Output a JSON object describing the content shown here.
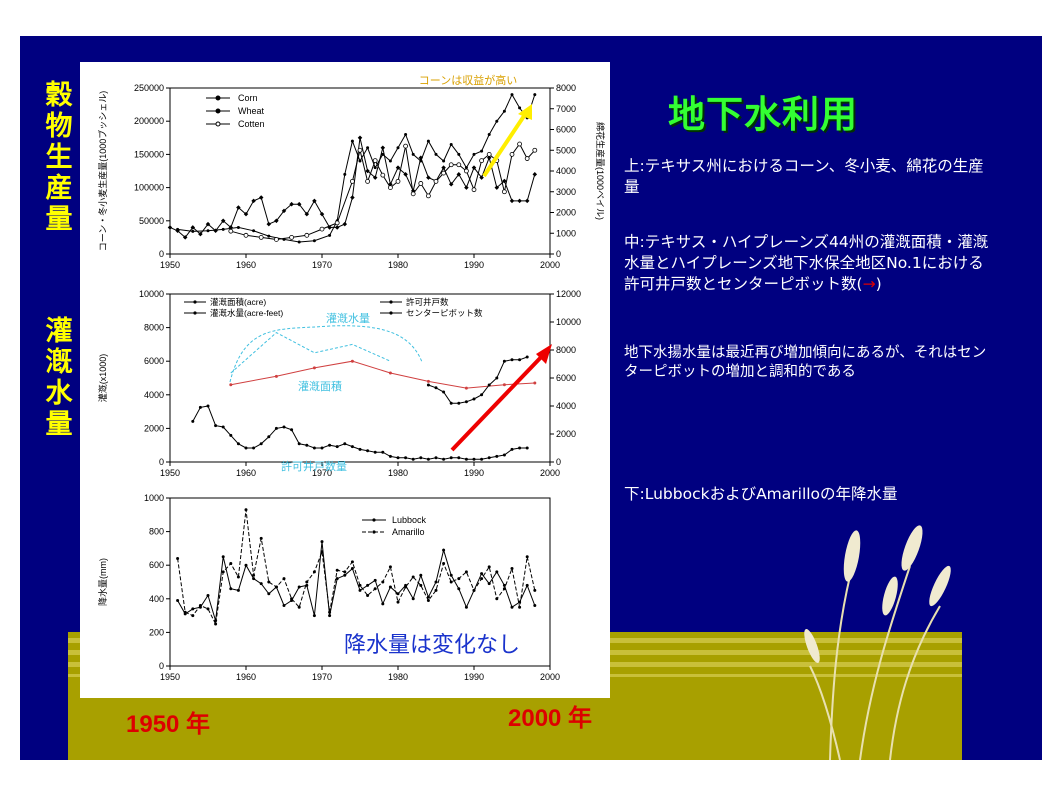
{
  "slide": {
    "title": "地下水利用",
    "left_labels": {
      "top": "穀物生産量",
      "middle": "灌漑水量"
    },
    "desc_top": "上:テキサス州におけるコーン、冬小麦、綿花の生産量",
    "desc_middle": "中:テキサス・ハイプレーンズ44州の灌漑面積・灌漑水量とハイプレーンズ地下水保全地区No.1における許可井戸数とセンターピボット数(→)",
    "desc_middle_arrow": "→",
    "desc_trend": "地下水揚水量は最近再び増加傾向にあるが、それはセンターピボットの増加と調和的である",
    "desc_bottom": "下:LubbockおよびAmarilloの年降水量",
    "year_start": "1950 年",
    "year_end": "2000 年",
    "colors": {
      "background": "#000080",
      "title": "#33ff33",
      "label": "#ffff00",
      "ground": "#a8a000",
      "red": "#dd0000"
    }
  },
  "chart_data": [
    {
      "type": "line",
      "xlim": [
        1950,
        2000
      ],
      "xticks": [
        "1950",
        "1960",
        "1970",
        "1980",
        "1990",
        "2000"
      ],
      "ylabel": "コーン・冬小麦生産量(1000ブッシェル)",
      "ylim": [
        0,
        250000
      ],
      "yticks": [
        "0",
        "50000",
        "100000",
        "150000",
        "200000",
        "250000"
      ],
      "y2label": "綿花生産量(1000ベイル)",
      "y2lim": [
        0,
        8000
      ],
      "y2ticks": [
        "0",
        "1000",
        "2000",
        "3000",
        "4000",
        "5000",
        "6000",
        "7000",
        "8000"
      ],
      "legend": [
        "Corn",
        "Wheat",
        "Cotten"
      ],
      "annotation": "コーンは収益が高い",
      "series": [
        {
          "name": "Corn",
          "axis": "left",
          "x": [
            1951,
            1953,
            1955,
            1957,
            1959,
            1961,
            1963,
            1965,
            1967,
            1969,
            1971,
            1972,
            1973,
            1974,
            1975,
            1976,
            1977,
            1978,
            1979,
            1980,
            1981,
            1982,
            1983,
            1984,
            1985,
            1986,
            1987,
            1988,
            1989,
            1990,
            1991,
            1992,
            1993,
            1994,
            1995,
            1996,
            1997,
            1998
          ],
          "y": [
            37000,
            34000,
            35000,
            37000,
            40000,
            35000,
            27000,
            22000,
            18000,
            20000,
            28000,
            50000,
            120000,
            170000,
            140000,
            160000,
            130000,
            150000,
            140000,
            160000,
            180000,
            150000,
            140000,
            170000,
            150000,
            140000,
            165000,
            150000,
            130000,
            150000,
            155000,
            180000,
            200000,
            215000,
            240000,
            220000,
            205000,
            240000
          ]
        },
        {
          "name": "Wheat",
          "axis": "left",
          "x": [
            1950,
            1951,
            1952,
            1953,
            1954,
            1955,
            1956,
            1957,
            1958,
            1959,
            1960,
            1961,
            1962,
            1963,
            1964,
            1965,
            1966,
            1967,
            1968,
            1969,
            1970,
            1971,
            1972,
            1973,
            1974,
            1975,
            1976,
            1977,
            1978,
            1979,
            1980,
            1981,
            1982,
            1983,
            1984,
            1985,
            1986,
            1987,
            1988,
            1989,
            1990,
            1991,
            1992,
            1993,
            1994,
            1995,
            1996,
            1997,
            1998
          ],
          "y": [
            40000,
            35000,
            25000,
            40000,
            30000,
            45000,
            35000,
            50000,
            40000,
            70000,
            60000,
            80000,
            85000,
            45000,
            50000,
            65000,
            75000,
            75000,
            60000,
            80000,
            60000,
            40000,
            40000,
            45000,
            85000,
            175000,
            125000,
            115000,
            160000,
            105000,
            130000,
            120000,
            95000,
            145000,
            115000,
            110000,
            130000,
            105000,
            120000,
            100000,
            130000,
            115000,
            145000,
            100000,
            110000,
            80000,
            80000,
            80000,
            120000
          ]
        },
        {
          "name": "Cotten",
          "axis": "right",
          "x": [
            1958,
            1960,
            1962,
            1964,
            1966,
            1968,
            1970,
            1972,
            1974,
            1975,
            1976,
            1977,
            1978,
            1979,
            1980,
            1981,
            1982,
            1983,
            1984,
            1985,
            1986,
            1987,
            1988,
            1989,
            1990,
            1991,
            1992,
            1993,
            1994,
            1995,
            1996,
            1997,
            1998
          ],
          "y": [
            1100,
            900,
            800,
            700,
            800,
            900,
            1200,
            1500,
            3500,
            5000,
            3500,
            4500,
            3800,
            3200,
            3500,
            5200,
            2900,
            3400,
            2800,
            3500,
            3900,
            4300,
            4300,
            4000,
            3100,
            4500,
            4800,
            4500,
            3000,
            4800,
            5300,
            4600,
            5000
          ]
        }
      ]
    },
    {
      "type": "line",
      "xlim": [
        1950,
        2000
      ],
      "xticks": [
        "1950",
        "1960",
        "1970",
        "1980",
        "1990",
        "2000"
      ],
      "ylabel": "灌漑(x1000)",
      "ylim": [
        0,
        10000
      ],
      "yticks": [
        "0",
        "2000",
        "4000",
        "6000",
        "8000",
        "10000"
      ],
      "y2lim": [
        0,
        12000
      ],
      "y2ticks": [
        "0",
        "2000",
        "4000",
        "6000",
        "8000",
        "10000",
        "12000"
      ],
      "legend": [
        "灌漑面積(acre)",
        "灌漑水量(acre-feet)",
        "許可井戸数",
        "センターピボット数"
      ],
      "annotations": [
        "灌漑水量",
        "灌漑面積",
        "許可井戸数量"
      ],
      "series": [
        {
          "name": "灌漑面積(acre)",
          "axis": "left",
          "x": [
            1958,
            1964,
            1969,
            1974,
            1979,
            1984,
            1989,
            1994,
            1998
          ],
          "y": [
            4600,
            5100,
            5600,
            6000,
            5300,
            4800,
            4400,
            4600,
            4700
          ]
        },
        {
          "name": "灌漑水量(acre-feet)",
          "axis": "left",
          "x": [
            1958,
            1964,
            1969,
            1974,
            1979
          ],
          "y": [
            5300,
            7700,
            6500,
            7000,
            6000
          ]
        },
        {
          "name": "許可井戸数",
          "axis": "right",
          "x": [
            1953,
            1954,
            1955,
            1956,
            1957,
            1958,
            1959,
            1960,
            1961,
            1962,
            1963,
            1964,
            1965,
            1966,
            1967,
            1968,
            1969,
            1970,
            1971,
            1972,
            1973,
            1974,
            1975,
            1976,
            1977,
            1978,
            1979,
            1980,
            1981,
            1982,
            1983,
            1984,
            1985,
            1986,
            1987,
            1988,
            1989,
            1990,
            1991,
            1992,
            1993,
            1994,
            1995,
            1996,
            1997
          ],
          "y": [
            2900,
            3900,
            4000,
            2600,
            2500,
            1900,
            1300,
            1000,
            1000,
            1300,
            1800,
            2400,
            2500,
            2300,
            1300,
            1200,
            1000,
            1000,
            1200,
            1100,
            1300,
            1100,
            900,
            800,
            700,
            700,
            400,
            300,
            300,
            200,
            300,
            200,
            300,
            200,
            300,
            300,
            200,
            200,
            200,
            300,
            400,
            500,
            900,
            1000,
            1000
          ]
        },
        {
          "name": "センターピボット数",
          "axis": "right",
          "x": [
            1984,
            1985,
            1986,
            1987,
            1988,
            1989,
            1990,
            1991,
            1992,
            1993,
            1994,
            1995,
            1996,
            1997
          ],
          "y": [
            5500,
            5300,
            5000,
            4200,
            4200,
            4300,
            4500,
            4800,
            5500,
            6000,
            7200,
            7300,
            7300,
            7500
          ]
        }
      ]
    },
    {
      "type": "line",
      "xlim": [
        1950,
        2000
      ],
      "xticks": [
        "1950",
        "1960",
        "1970",
        "1980",
        "1990",
        "2000"
      ],
      "ylabel": "降水量(mm)",
      "ylim": [
        0,
        1000
      ],
      "yticks": [
        "0",
        "200",
        "400",
        "600",
        "800",
        "1000"
      ],
      "legend": [
        "Lubbock",
        "Amarillo"
      ],
      "annotation": "降水量は変化なし",
      "series": [
        {
          "name": "Lubbock",
          "x": [
            1951,
            1952,
            1953,
            1954,
            1955,
            1956,
            1957,
            1958,
            1959,
            1960,
            1961,
            1962,
            1963,
            1964,
            1965,
            1966,
            1967,
            1968,
            1969,
            1970,
            1971,
            1972,
            1973,
            1974,
            1975,
            1976,
            1977,
            1978,
            1979,
            1980,
            1981,
            1982,
            1983,
            1984,
            1985,
            1986,
            1987,
            1988,
            1989,
            1990,
            1991,
            1992,
            1993,
            1994,
            1995,
            1996,
            1997,
            1998
          ],
          "y": [
            390,
            310,
            340,
            350,
            420,
            270,
            650,
            460,
            450,
            600,
            520,
            490,
            430,
            470,
            360,
            390,
            470,
            480,
            300,
            740,
            300,
            520,
            540,
            580,
            450,
            480,
            510,
            370,
            470,
            430,
            480,
            400,
            540,
            410,
            500,
            690,
            540,
            460,
            350,
            450,
            550,
            490,
            560,
            480,
            350,
            380,
            480,
            360
          ]
        },
        {
          "name": "Amarillo",
          "x": [
            1951,
            1952,
            1953,
            1954,
            1955,
            1956,
            1957,
            1958,
            1959,
            1960,
            1961,
            1962,
            1963,
            1964,
            1965,
            1966,
            1967,
            1968,
            1969,
            1970,
            1971,
            1972,
            1973,
            1974,
            1975,
            1976,
            1977,
            1978,
            1979,
            1980,
            1981,
            1982,
            1983,
            1984,
            1985,
            1986,
            1987,
            1988,
            1989,
            1990,
            1991,
            1992,
            1993,
            1994,
            1995,
            1996,
            1997,
            1998
          ],
          "y": [
            640,
            320,
            300,
            360,
            340,
            250,
            560,
            610,
            530,
            930,
            540,
            760,
            500,
            470,
            520,
            400,
            350,
            500,
            560,
            680,
            320,
            570,
            560,
            620,
            480,
            420,
            460,
            500,
            590,
            380,
            470,
            530,
            480,
            390,
            450,
            610,
            500,
            520,
            560,
            450,
            520,
            590,
            400,
            460,
            580,
            350,
            650,
            450
          ]
        }
      ]
    }
  ]
}
